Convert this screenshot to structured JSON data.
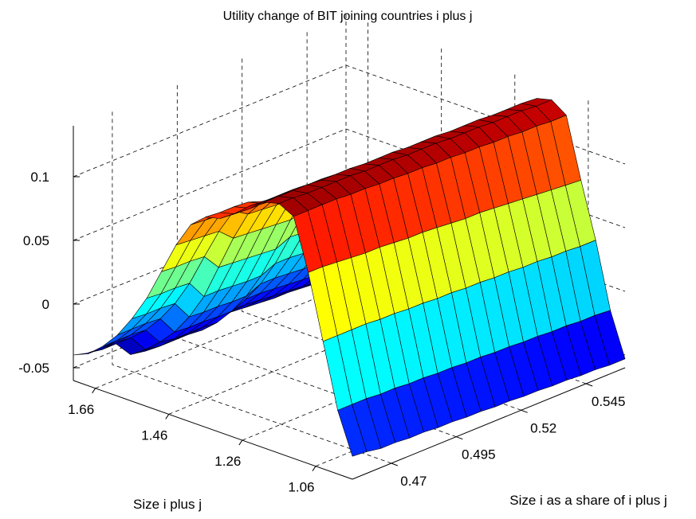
{
  "chart_data": {
    "type": "surface",
    "title": "Utility change of BIT joining countries i plus j",
    "xlabel": "Size i plus j",
    "ylabel": "Size i as a share of i plus j",
    "zlabel": "",
    "x_ticks": [
      "1.66",
      "1.46",
      "1.26",
      "1.06"
    ],
    "y_ticks": [
      "0.47",
      "0.495",
      "0.52",
      "0.545"
    ],
    "z_ticks": [
      "-0.05",
      "0",
      "0.05",
      "0.1"
    ],
    "xlim": [
      0.96,
      1.72
    ],
    "ylim": [
      0.455,
      0.56
    ],
    "zlim": [
      -0.06,
      0.14
    ],
    "grid": true,
    "colormap": "jet",
    "x": [
      1.72,
      1.68,
      1.64,
      1.6,
      1.56,
      1.52,
      1.48,
      1.44,
      1.4,
      1.36,
      1.32,
      1.28,
      1.24,
      1.2,
      1.16,
      1.12,
      1.08,
      1.04,
      1.0,
      0.96
    ],
    "y": [
      0.455,
      0.4605,
      0.466,
      0.4715,
      0.477,
      0.4825,
      0.488,
      0.4935,
      0.499,
      0.5045,
      0.51,
      0.5155,
      0.521,
      0.5265,
      0.532,
      0.5375,
      0.543,
      0.5485,
      0.554,
      0.56
    ],
    "z": [
      [
        -0.04,
        -0.035,
        -0.025,
        -0.012,
        0.005,
        0.025,
        0.05,
        0.075,
        0.095,
        0.105,
        0.108,
        0.116,
        0.126,
        0.133,
        0.136,
        0.13,
        0.09,
        0.04,
        -0.01,
        -0.042
      ],
      [
        -0.043,
        -0.035,
        -0.025,
        -0.012,
        0.004,
        0.024,
        0.049,
        0.074,
        0.094,
        0.104,
        0.107,
        0.115,
        0.125,
        0.133,
        0.136,
        0.13,
        0.09,
        0.04,
        -0.01,
        -0.043
      ],
      [
        -0.045,
        -0.035,
        -0.025,
        -0.012,
        0.004,
        0.024,
        0.049,
        0.073,
        0.093,
        0.104,
        0.107,
        0.115,
        0.125,
        0.133,
        0.135,
        0.13,
        0.089,
        0.04,
        -0.01,
        -0.045
      ],
      [
        -0.045,
        -0.036,
        -0.026,
        -0.013,
        0.003,
        0.023,
        0.048,
        0.072,
        0.092,
        0.103,
        0.106,
        0.114,
        0.125,
        0.133,
        0.135,
        0.13,
        0.088,
        0.04,
        -0.011,
        -0.045
      ],
      [
        -0.058,
        -0.05,
        -0.04,
        -0.028,
        -0.012,
        0.008,
        0.035,
        0.062,
        0.085,
        0.099,
        0.105,
        0.114,
        0.124,
        0.132,
        0.135,
        0.129,
        0.087,
        0.039,
        -0.011,
        -0.046
      ],
      [
        -0.06,
        -0.052,
        -0.042,
        -0.029,
        -0.013,
        0.008,
        0.034,
        0.061,
        0.084,
        0.098,
        0.104,
        0.113,
        0.124,
        0.132,
        0.135,
        0.129,
        0.087,
        0.039,
        -0.012,
        -0.046
      ],
      [
        -0.06,
        -0.052,
        -0.042,
        -0.029,
        -0.013,
        0.007,
        0.033,
        0.06,
        0.083,
        0.097,
        0.103,
        0.113,
        0.123,
        0.132,
        0.134,
        0.128,
        0.086,
        0.038,
        -0.012,
        -0.047
      ],
      [
        -0.06,
        -0.052,
        -0.042,
        -0.03,
        -0.014,
        0.006,
        0.032,
        0.059,
        0.082,
        0.096,
        0.102,
        0.112,
        0.123,
        0.131,
        0.134,
        0.128,
        0.085,
        0.038,
        -0.013,
        -0.047
      ],
      [
        -0.06,
        -0.053,
        -0.043,
        -0.03,
        -0.014,
        0.006,
        0.031,
        0.058,
        0.081,
        0.095,
        0.101,
        0.111,
        0.122,
        0.131,
        0.134,
        0.127,
        0.085,
        0.037,
        -0.013,
        -0.048
      ],
      [
        -0.055,
        -0.048,
        -0.038,
        -0.025,
        -0.009,
        0.011,
        0.036,
        0.061,
        0.08,
        0.093,
        0.1,
        0.11,
        0.122,
        0.131,
        0.133,
        0.127,
        0.084,
        0.037,
        -0.014,
        -0.048
      ],
      [
        -0.055,
        -0.048,
        -0.038,
        -0.025,
        -0.009,
        0.011,
        0.035,
        0.059,
        0.078,
        0.091,
        0.099,
        0.109,
        0.121,
        0.13,
        0.133,
        0.126,
        0.083,
        0.036,
        -0.014,
        -0.049
      ],
      [
        -0.056,
        -0.049,
        -0.039,
        -0.026,
        -0.01,
        0.01,
        0.033,
        0.056,
        0.075,
        0.089,
        0.098,
        0.108,
        0.121,
        0.13,
        0.133,
        0.126,
        0.082,
        0.036,
        -0.015,
        -0.049
      ],
      [
        -0.057,
        -0.05,
        -0.04,
        -0.027,
        -0.011,
        0.008,
        0.03,
        0.052,
        0.07,
        0.086,
        0.097,
        0.107,
        0.12,
        0.13,
        0.132,
        0.125,
        0.082,
        0.035,
        -0.015,
        -0.05
      ],
      [
        -0.058,
        -0.051,
        -0.041,
        -0.028,
        -0.012,
        0.006,
        0.027,
        0.047,
        0.064,
        0.082,
        0.095,
        0.106,
        0.12,
        0.129,
        0.132,
        0.125,
        0.081,
        0.035,
        -0.016,
        -0.05
      ],
      [
        -0.058,
        -0.051,
        -0.042,
        -0.029,
        -0.014,
        0.004,
        0.023,
        0.042,
        0.058,
        0.078,
        0.093,
        0.105,
        0.119,
        0.129,
        0.132,
        0.124,
        0.08,
        0.034,
        -0.016,
        -0.051
      ],
      [
        -0.059,
        -0.052,
        -0.043,
        -0.03,
        -0.015,
        0.002,
        0.019,
        0.036,
        0.051,
        0.073,
        0.091,
        0.104,
        0.119,
        0.129,
        0.131,
        0.124,
        0.079,
        0.034,
        -0.017,
        -0.051
      ],
      [
        -0.059,
        -0.053,
        -0.044,
        -0.032,
        -0.017,
        -0.001,
        0.015,
        0.03,
        0.043,
        0.067,
        0.088,
        0.103,
        0.118,
        0.128,
        0.131,
        0.123,
        0.078,
        0.033,
        -0.017,
        -0.052
      ],
      [
        -0.06,
        -0.054,
        -0.045,
        -0.033,
        -0.019,
        -0.004,
        0.011,
        0.024,
        0.035,
        0.06,
        0.085,
        0.102,
        0.118,
        0.128,
        0.131,
        0.123,
        0.077,
        0.033,
        -0.018,
        -0.052
      ],
      [
        -0.06,
        -0.055,
        -0.046,
        -0.035,
        -0.021,
        -0.007,
        0.006,
        0.018,
        0.027,
        0.052,
        0.082,
        0.101,
        0.117,
        0.128,
        0.13,
        0.122,
        0.076,
        0.032,
        -0.018,
        -0.053
      ],
      [
        -0.06,
        -0.056,
        -0.048,
        -0.037,
        -0.024,
        -0.01,
        0.002,
        0.012,
        0.02,
        0.044,
        0.078,
        0.1,
        0.117,
        0.127,
        0.13,
        0.122,
        0.075,
        0.032,
        -0.019,
        -0.053
      ]
    ]
  }
}
